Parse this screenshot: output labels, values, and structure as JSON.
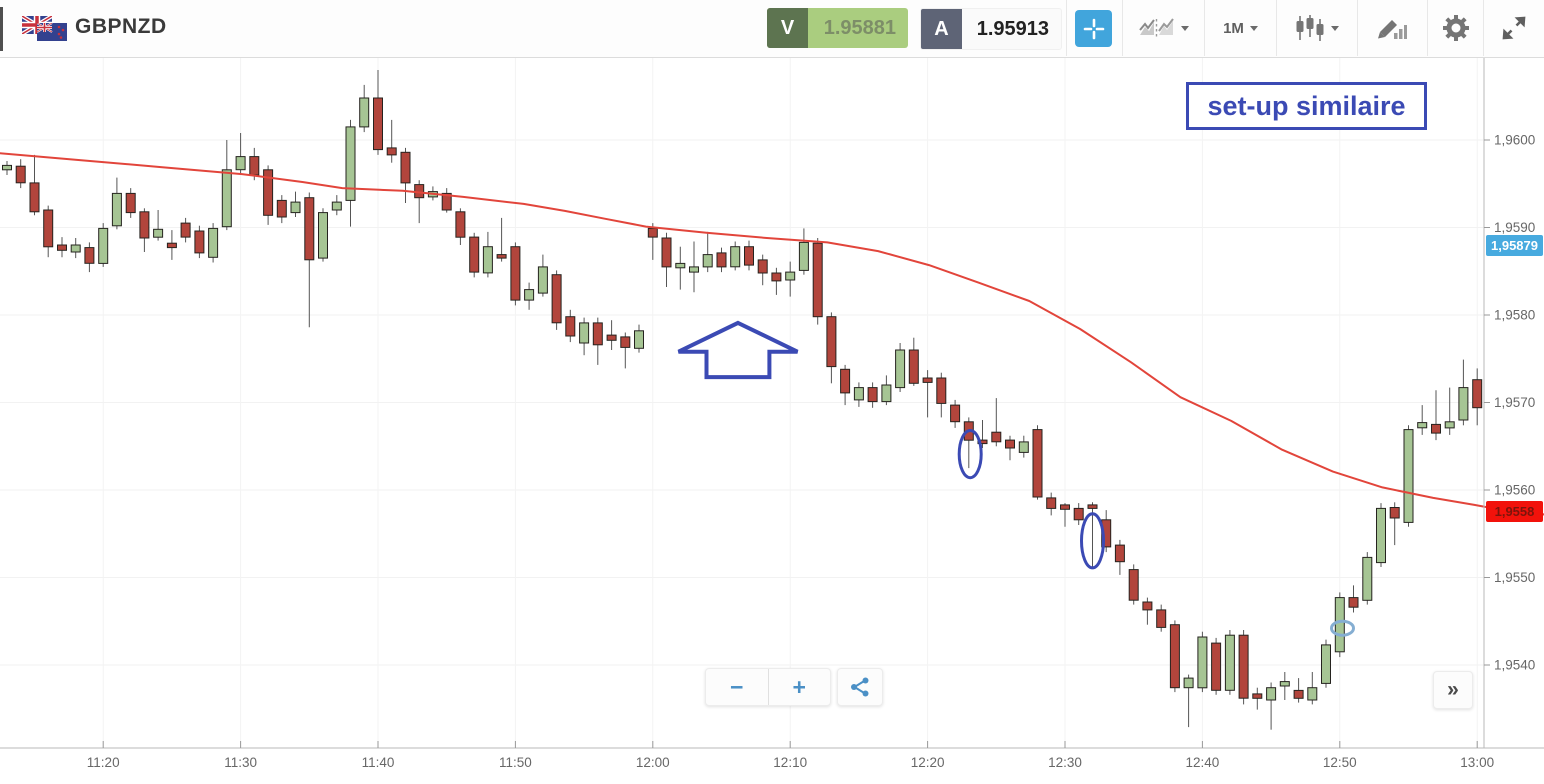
{
  "header": {
    "symbol": "GBPNZD",
    "sell_button": {
      "label": "V",
      "price": "1.95881"
    },
    "buy_button": {
      "label": "A",
      "price": "1.95913"
    },
    "timeframe": "1M"
  },
  "annotations": {
    "note_label": "set-up similaire",
    "color": "#3b4ab4",
    "arrow_up": {
      "t_center": 53.2,
      "t_half_width": 4.33,
      "t_stem_half": 2.29,
      "price_tip": 1.95791,
      "price_shoulder": 1.95758,
      "price_base": 1.95729
    },
    "ellipses": [
      {
        "t": 70.1,
        "price": 1.95641,
        "rt": 0.8,
        "rp": 0.00027,
        "color": "#3b4ab4",
        "width": 3
      },
      {
        "t": 79.0,
        "price": 1.95542,
        "rt": 0.8,
        "rp": 0.00031,
        "color": "#3b4ab4",
        "width": 3
      },
      {
        "t": 97.2,
        "price": 1.95442,
        "rt": 0.8,
        "rp": 8e-05,
        "color": "#85aed2",
        "width": 3
      }
    ]
  },
  "controls": {
    "zoom_out": "−",
    "zoom_in": "+",
    "collapse": "»"
  },
  "chart_data": {
    "type": "candlestick",
    "symbol": "GBPNZD",
    "interval": "1M",
    "start_time": "11:13",
    "interval_min": 1,
    "up_color": "#a6c594",
    "down_color": "#b2453c",
    "ma_color": "#e2453b",
    "grid": true,
    "ylim": [
      1.953,
      1.961
    ],
    "price_ticks": [
      {
        "label": "1,9600",
        "value": 1.96
      },
      {
        "label": "1,9590",
        "value": 1.959
      },
      {
        "label": "1,9580",
        "value": 1.958
      },
      {
        "label": "1,9570",
        "value": 1.957
      },
      {
        "label": "1,9560",
        "value": 1.956
      },
      {
        "label": "1,9550",
        "value": 1.955
      },
      {
        "label": "1,9540",
        "value": 1.954
      }
    ],
    "time_ticks": [
      "11:20",
      "11:30",
      "11:40",
      "11:50",
      "12:00",
      "12:10",
      "12:20",
      "12:30",
      "12:40",
      "12:50",
      "13:00"
    ],
    "price_tags": [
      {
        "label": "1,95879",
        "value": 1.95879,
        "bg": "#47aadf",
        "fg": "#ffffff"
      },
      {
        "label": "1,9558",
        "value": 1.95575,
        "bg": "#f2120b",
        "fg": "#7c150c"
      }
    ],
    "ohlc": [
      [
        1.95966,
        1.95976,
        1.9596,
        1.95971
      ],
      [
        1.9597,
        1.95978,
        1.95945,
        1.95951
      ],
      [
        1.95951,
        1.95983,
        1.95914,
        1.95918
      ],
      [
        1.9592,
        1.95925,
        1.95866,
        1.95878
      ],
      [
        1.9588,
        1.95889,
        1.95866,
        1.95874
      ],
      [
        1.95872,
        1.95888,
        1.95865,
        1.9588
      ],
      [
        1.95877,
        1.95883,
        1.95849,
        1.95859
      ],
      [
        1.95859,
        1.95905,
        1.95855,
        1.95899
      ],
      [
        1.95902,
        1.95957,
        1.95898,
        1.95939
      ],
      [
        1.95939,
        1.95945,
        1.95911,
        1.95917
      ],
      [
        1.95918,
        1.95922,
        1.95872,
        1.95888
      ],
      [
        1.95889,
        1.9592,
        1.95885,
        1.95898
      ],
      [
        1.95882,
        1.95897,
        1.95863,
        1.95877
      ],
      [
        1.95905,
        1.95911,
        1.95883,
        1.95889
      ],
      [
        1.95896,
        1.95902,
        1.95865,
        1.95871
      ],
      [
        1.95866,
        1.95905,
        1.9586,
        1.95899
      ],
      [
        1.95901,
        1.96,
        1.95897,
        1.95966
      ],
      [
        1.95966,
        1.96008,
        1.9596,
        1.95981
      ],
      [
        1.95981,
        1.95991,
        1.95954,
        1.9596
      ],
      [
        1.95966,
        1.95971,
        1.95903,
        1.95914
      ],
      [
        1.95931,
        1.95937,
        1.95905,
        1.95912
      ],
      [
        1.95917,
        1.95941,
        1.95912,
        1.95929
      ],
      [
        1.95934,
        1.9594,
        1.95786,
        1.95863
      ],
      [
        1.95865,
        1.95922,
        1.95861,
        1.95917
      ],
      [
        1.9592,
        1.95937,
        1.95914,
        1.95929
      ],
      [
        1.95931,
        1.96023,
        1.95901,
        1.96015
      ],
      [
        1.96015,
        1.96063,
        1.96009,
        1.96048
      ],
      [
        1.96048,
        1.9608,
        1.95983,
        1.95989
      ],
      [
        1.95991,
        1.96023,
        1.95974,
        1.95983
      ],
      [
        1.95986,
        1.95991,
        1.95928,
        1.95951
      ],
      [
        1.95949,
        1.95954,
        1.95905,
        1.95934
      ],
      [
        1.95935,
        1.95947,
        1.95931,
        1.95941
      ],
      [
        1.95939,
        1.95945,
        1.95917,
        1.9592
      ],
      [
        1.95918,
        1.95922,
        1.9588,
        1.95889
      ],
      [
        1.95889,
        1.95894,
        1.95843,
        1.95849
      ],
      [
        1.95848,
        1.95895,
        1.95843,
        1.95878
      ],
      [
        1.95869,
        1.95911,
        1.95861,
        1.95865
      ],
      [
        1.95878,
        1.95883,
        1.95811,
        1.95817
      ],
      [
        1.95817,
        1.95837,
        1.95806,
        1.95829
      ],
      [
        1.95825,
        1.95869,
        1.95821,
        1.95855
      ],
      [
        1.95846,
        1.95851,
        1.95783,
        1.95791
      ],
      [
        1.95798,
        1.95806,
        1.95769,
        1.95776
      ],
      [
        1.95768,
        1.95797,
        1.95754,
        1.95791
      ],
      [
        1.95791,
        1.95797,
        1.95743,
        1.95766
      ],
      [
        1.95777,
        1.95794,
        1.9576,
        1.95771
      ],
      [
        1.95775,
        1.9578,
        1.95739,
        1.95763
      ],
      [
        1.95762,
        1.95789,
        1.95757,
        1.95782
      ],
      [
        1.95899,
        1.95905,
        1.95863,
        1.95889
      ],
      [
        1.95888,
        1.95894,
        1.95832,
        1.95855
      ],
      [
        1.95854,
        1.95878,
        1.95829,
        1.95859
      ],
      [
        1.95849,
        1.95884,
        1.95826,
        1.95855
      ],
      [
        1.95855,
        1.95895,
        1.95849,
        1.95869
      ],
      [
        1.95871,
        1.95877,
        1.95849,
        1.95855
      ],
      [
        1.95855,
        1.95884,
        1.95851,
        1.95878
      ],
      [
        1.95878,
        1.95885,
        1.95851,
        1.95857
      ],
      [
        1.95863,
        1.95869,
        1.95834,
        1.95848
      ],
      [
        1.95848,
        1.95854,
        1.95823,
        1.95839
      ],
      [
        1.9584,
        1.95861,
        1.95821,
        1.95849
      ],
      [
        1.95851,
        1.95899,
        1.95846,
        1.95883
      ],
      [
        1.95882,
        1.95888,
        1.95789,
        1.95798
      ],
      [
        1.95798,
        1.95803,
        1.95722,
        1.95741
      ],
      [
        1.95738,
        1.95743,
        1.95697,
        1.95711
      ],
      [
        1.95703,
        1.95723,
        1.95695,
        1.95717
      ],
      [
        1.95717,
        1.95723,
        1.95694,
        1.95701
      ],
      [
        1.95701,
        1.95731,
        1.95697,
        1.9572
      ],
      [
        1.95717,
        1.95768,
        1.95712,
        1.9576
      ],
      [
        1.9576,
        1.95774,
        1.95719,
        1.95722
      ],
      [
        1.95728,
        1.95737,
        1.95683,
        1.95723
      ],
      [
        1.95728,
        1.95734,
        1.95683,
        1.95699
      ],
      [
        1.95697,
        1.95703,
        1.95671,
        1.95678
      ],
      [
        1.95678,
        1.95683,
        1.95625,
        1.95657
      ],
      [
        1.95657,
        1.9568,
        1.95648,
        1.95653
      ],
      [
        1.95666,
        1.95705,
        1.9565,
        1.95655
      ],
      [
        1.95657,
        1.95662,
        1.95634,
        1.95648
      ],
      [
        1.95643,
        1.95662,
        1.95637,
        1.95655
      ],
      [
        1.95669,
        1.95674,
        1.95589,
        1.95592
      ],
      [
        1.95591,
        1.95597,
        1.95571,
        1.95579
      ],
      [
        1.95583,
        1.95585,
        1.95558,
        1.95578
      ],
      [
        1.95579,
        1.95585,
        1.9556,
        1.95566
      ],
      [
        1.95583,
        1.95586,
        1.95512,
        1.95579
      ],
      [
        1.95566,
        1.95577,
        1.95529,
        1.95535
      ],
      [
        1.95537,
        1.95543,
        1.95503,
        1.95518
      ],
      [
        1.95509,
        1.95515,
        1.95469,
        1.95474
      ],
      [
        1.95472,
        1.95477,
        1.95446,
        1.95463
      ],
      [
        1.95463,
        1.95469,
        1.95438,
        1.95443
      ],
      [
        1.95446,
        1.95451,
        1.95369,
        1.95374
      ],
      [
        1.95374,
        1.95389,
        1.95329,
        1.95385
      ],
      [
        1.95374,
        1.95438,
        1.95369,
        1.95432
      ],
      [
        1.95425,
        1.95431,
        1.95366,
        1.95371
      ],
      [
        1.95371,
        1.9544,
        1.95366,
        1.95434
      ],
      [
        1.95434,
        1.9544,
        1.95355,
        1.95362
      ],
      [
        1.95367,
        1.95374,
        1.95349,
        1.95362
      ],
      [
        1.9536,
        1.9538,
        1.95326,
        1.95374
      ],
      [
        1.95376,
        1.95392,
        1.9536,
        1.95381
      ],
      [
        1.95371,
        1.95385,
        1.95357,
        1.95362
      ],
      [
        1.9536,
        1.95392,
        1.95355,
        1.95374
      ],
      [
        1.95379,
        1.95429,
        1.95374,
        1.95423
      ],
      [
        1.95415,
        1.95483,
        1.95409,
        1.95477
      ],
      [
        1.95477,
        1.95491,
        1.9546,
        1.95466
      ],
      [
        1.95474,
        1.95529,
        1.95469,
        1.95523
      ],
      [
        1.95517,
        1.95585,
        1.95512,
        1.95579
      ],
      [
        1.9558,
        1.95586,
        1.95537,
        1.95568
      ],
      [
        1.95563,
        1.95674,
        1.95558,
        1.95669
      ],
      [
        1.95671,
        1.95697,
        1.95663,
        1.95677
      ],
      [
        1.95675,
        1.95714,
        1.95657,
        1.95665
      ],
      [
        1.95671,
        1.95717,
        1.95663,
        1.95678
      ],
      [
        1.9568,
        1.95749,
        1.95674,
        1.95717
      ],
      [
        1.95726,
        1.95739,
        1.95674,
        1.95694
      ]
    ],
    "ma": [
      [
        -0.6,
        1.95985
      ],
      [
        5.3,
        1.95977
      ],
      [
        11.2,
        1.95969
      ],
      [
        17.1,
        1.95961
      ],
      [
        21.5,
        1.95952
      ],
      [
        24.4,
        1.95945
      ],
      [
        28.8,
        1.95942
      ],
      [
        33.2,
        1.95935
      ],
      [
        37.6,
        1.95927
      ],
      [
        40.6,
        1.95919
      ],
      [
        43.5,
        1.9591
      ],
      [
        46.5,
        1.95901
      ],
      [
        50.9,
        1.95894
      ],
      [
        55.3,
        1.95888
      ],
      [
        59.7,
        1.95883
      ],
      [
        63.4,
        1.95873
      ],
      [
        67.1,
        1.95857
      ],
      [
        70.7,
        1.95837
      ],
      [
        74.4,
        1.95816
      ],
      [
        78.1,
        1.95784
      ],
      [
        81.8,
        1.95746
      ],
      [
        85.4,
        1.95706
      ],
      [
        89.1,
        1.95679
      ],
      [
        92.8,
        1.95646
      ],
      [
        96.5,
        1.95621
      ],
      [
        100.1,
        1.95603
      ],
      [
        103.8,
        1.95591
      ],
      [
        106.8,
        1.95583
      ],
      [
        108.5,
        1.95578
      ],
      [
        113.0,
        1.9557
      ]
    ]
  }
}
